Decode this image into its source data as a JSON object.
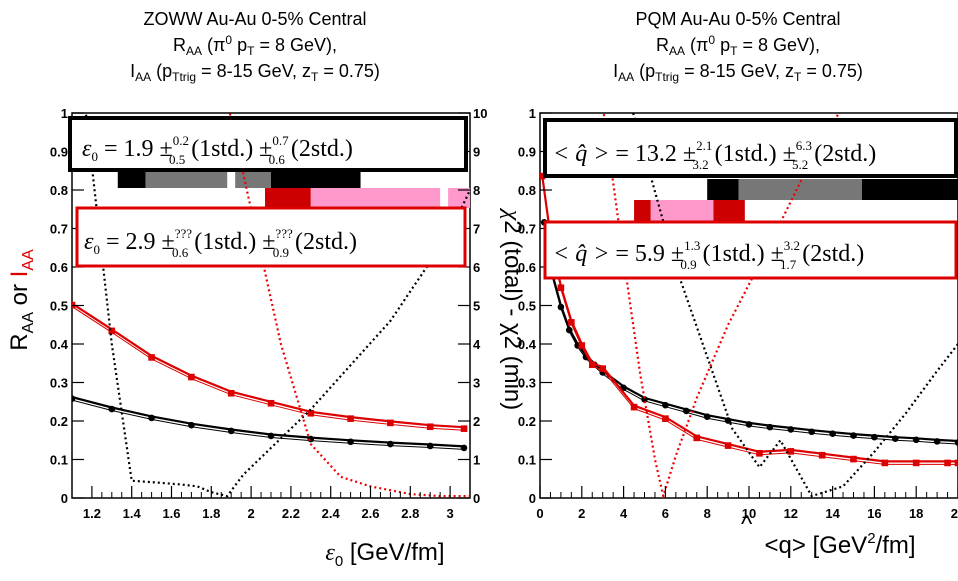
{
  "chart_data": [
    {
      "type": "line",
      "title_lines": [
        "ZOWW Au-Au 0-5% Central",
        "R",
        "AA",
        " (π",
        "0",
        " p",
        "T",
        " = 8 GeV),",
        "I",
        "AA",
        " (p",
        "Ttrig",
        " = 8-15 GeV, z",
        "T",
        " = 0.75)"
      ],
      "xlabel": "ε",
      "xlabel_sub": "0",
      "xlabel_rest": " [GeV/fm]",
      "ylabel_left": "R",
      "ylabel_left_sub": "AA",
      "ylabel_left_or": " or ",
      "ylabel_left_red": "I",
      "ylabel_left_red_sub": "AA",
      "xlim": [
        1.1,
        3.1
      ],
      "ylim": [
        0,
        1
      ],
      "y2lim": [
        0,
        10
      ],
      "x_ticks": [
        "1.2",
        "1.4",
        "1.6",
        "1.8",
        "2",
        "2.2",
        "2.4",
        "2.6",
        "2.8",
        "3"
      ],
      "y_ticks": [
        "0",
        "0.1",
        "0.2",
        "0.3",
        "0.4",
        "0.5",
        "0.6",
        "0.7",
        "0.8",
        "0.9",
        "1"
      ],
      "y2_ticks": [
        "0",
        "1",
        "2",
        "3",
        "4",
        "5",
        "6",
        "7",
        "8",
        "9",
        "10"
      ],
      "series": [
        {
          "name": "R_AA",
          "color": "#000000",
          "style": "solid-markers",
          "x": [
            1.1,
            1.3,
            1.5,
            1.7,
            1.9,
            2.1,
            2.3,
            2.5,
            2.7,
            2.9,
            3.07
          ],
          "y": [
            0.262,
            0.235,
            0.212,
            0.193,
            0.178,
            0.165,
            0.157,
            0.15,
            0.144,
            0.139,
            0.134
          ]
        },
        {
          "name": "I_AA",
          "color": "#dd0000",
          "style": "solid-markers",
          "x": [
            1.1,
            1.3,
            1.5,
            1.7,
            1.9,
            2.1,
            2.3,
            2.5,
            2.7,
            2.9,
            3.07
          ],
          "y": [
            0.505,
            0.438,
            0.369,
            0.318,
            0.276,
            0.25,
            0.224,
            0.21,
            0.199,
            0.189,
            0.184
          ]
        },
        {
          "name": "chi2 R_AA",
          "axis": "right",
          "color": "#000000",
          "style": "dotted",
          "x": [
            1.1,
            1.17,
            1.3,
            1.4,
            1.53,
            1.65,
            1.73,
            1.8,
            1.88,
            1.96,
            2.3,
            2.7,
            3.0,
            3.1
          ],
          "y": [
            12.0,
            10.0,
            4.0,
            0.45,
            0.4,
            0.35,
            0.3,
            0.15,
            0.05,
            0.6,
            2.3,
            4.6,
            6.9,
            8.0
          ]
        },
        {
          "name": "chi2 I_AA",
          "axis": "right",
          "color": "#ee0000",
          "style": "dotted",
          "x": [
            1.85,
            2.0,
            2.15,
            2.3,
            2.45,
            2.6,
            2.8,
            2.95,
            3.1
          ],
          "y": [
            11.0,
            7.5,
            4.0,
            1.4,
            0.55,
            0.3,
            0.1,
            0.05,
            0.05
          ]
        }
      ],
      "annotation_black": {
        "lhs": "ε",
        "lhs_sub": "0",
        "value": " = 1.9 ±",
        "sup1": "0.2",
        "sub1": "0.5",
        "mid": " (1std.) ±",
        "sup2": "0.7",
        "sub2": "0.6",
        "end": " (2std.)"
      },
      "annotation_red": {
        "lhs": "ε",
        "lhs_sub": "0",
        "value": " = 2.9 ±",
        "sup1": "???",
        "sub1": "0.6",
        "mid": " (1std.) ±",
        "sup2": "???",
        "sub2": "0.9",
        "end": " (2std.)"
      },
      "bands_black": [
        {
          "x0": 1.33,
          "x1": 1.47,
          "level": "1std"
        },
        {
          "x0": 1.47,
          "x1": 1.88,
          "level": "2std"
        },
        {
          "x0": 1.92,
          "x1": 2.1,
          "level": "2std"
        },
        {
          "x0": 2.1,
          "x1": 2.55,
          "level": "1std"
        }
      ],
      "bands_red": [
        {
          "x0": 2.07,
          "x1": 2.3,
          "level": "1std"
        },
        {
          "x0": 2.3,
          "x1": 2.95,
          "level": "2std"
        },
        {
          "x0": 2.99,
          "x1": 3.1,
          "level": "2std"
        }
      ]
    },
    {
      "type": "line",
      "title_lines": [
        "PQM Au-Au 0-5% Central",
        "R",
        "AA",
        " (π",
        "0",
        " p",
        "T",
        " = 8 GeV),",
        "I",
        "AA",
        " (p",
        "Ttrig",
        " = 8-15 GeV, z",
        "T",
        " = 0.75)"
      ],
      "xlabel": "<q> [GeV",
      "xlabel_sup": "2",
      "xlabel_rest": "/fm]",
      "hat": "^",
      "ylabel_right_chi": "χ",
      "ylabel_right": "2 (total) - χ2 (min)",
      "xlim": [
        0,
        20
      ],
      "ylim": [
        0,
        1
      ],
      "x_ticks": [
        "0",
        "2",
        "4",
        "6",
        "8",
        "10",
        "12",
        "14",
        "16",
        "18",
        "20"
      ],
      "y_ticks": [
        "0",
        "0.1",
        "0.2",
        "0.3",
        "0.4",
        "0.5",
        "0.6",
        "0.7",
        "0.8",
        "0.9",
        "1"
      ],
      "series": [
        {
          "name": "R_AA",
          "color": "#000000",
          "style": "solid-markers",
          "x": [
            0.2,
            0.6,
            1.0,
            1.4,
            1.8,
            2.2,
            2.6,
            3.0,
            4.0,
            5.0,
            6.0,
            7.0,
            8.0,
            9.0,
            10.0,
            11.0,
            12.0,
            13.0,
            14.0,
            15.0,
            16.0,
            17.0,
            18.0,
            19.0,
            20.0
          ],
          "y": [
            0.72,
            0.58,
            0.5,
            0.44,
            0.4,
            0.37,
            0.35,
            0.33,
            0.29,
            0.26,
            0.245,
            0.23,
            0.215,
            0.205,
            0.195,
            0.188,
            0.182,
            0.176,
            0.171,
            0.166,
            0.162,
            0.158,
            0.155,
            0.151,
            0.148
          ]
        },
        {
          "name": "I_AA",
          "color": "#dd0000",
          "style": "solid-markers",
          "x": [
            0.1,
            0.5,
            1.0,
            1.5,
            2.0,
            2.5,
            3.0,
            4.5,
            6.0,
            7.5,
            9.0,
            10.5,
            12.0,
            13.5,
            15.0,
            16.5,
            18.0,
            19.5,
            20.0
          ],
          "y": [
            0.84,
            0.68,
            0.55,
            0.46,
            0.4,
            0.35,
            0.34,
            0.24,
            0.21,
            0.16,
            0.14,
            0.12,
            0.125,
            0.115,
            0.105,
            0.095,
            0.095,
            0.095,
            0.095
          ]
        },
        {
          "name": "chi2 R_AA",
          "axis": "right",
          "color": "#000000",
          "style": "dotted",
          "x": [
            4.2,
            6.5,
            9.2,
            10.5,
            11.5,
            13.0,
            14.5,
            16.0,
            17.5,
            19.0,
            20.0
          ],
          "y": [
            10.5,
            6.0,
            1.8,
            0.8,
            1.5,
            0.05,
            0.3,
            1.2,
            2.2,
            3.3,
            4.0
          ]
        },
        {
          "name": "chi2 I_AA",
          "axis": "right",
          "color": "#ee0000",
          "style": "dotted",
          "x": [
            2.8,
            3.8,
            4.8,
            5.5,
            5.9,
            6.5,
            7.5,
            9.0,
            11.0,
            13.0,
            14.3,
            15.0
          ],
          "y": [
            11.0,
            7.0,
            3.2,
            1.0,
            0.05,
            1.1,
            2.6,
            4.5,
            6.6,
            8.8,
            10.0,
            11.0
          ]
        }
      ],
      "annotation_black": {
        "lhs": "< q̂ >",
        "value": " = 13.2 ±",
        "sup1": "2.1",
        "sub1": "3.2",
        "mid": " (1std.) ±",
        "sup2": "6.3",
        "sub2": "5.2",
        "end": " (2std.)"
      },
      "annotation_red": {
        "lhs": "< q̂ >",
        "value": " = 5.9 ±",
        "sup1": "1.3",
        "sub1": "0.9",
        "mid": " (1std.) ±",
        "sup2": "3.2",
        "sub2": "1.7",
        "end": " (2std.)"
      },
      "bands_black": [
        {
          "x0": 8.0,
          "x1": 9.5,
          "level": "1std"
        },
        {
          "x0": 9.5,
          "x1": 15.4,
          "level": "2std"
        },
        {
          "x0": 15.4,
          "x1": 20.0,
          "level": "1std"
        }
      ],
      "bands_red": [
        {
          "x0": 4.5,
          "x1": 5.3,
          "level": "1std"
        },
        {
          "x0": 5.3,
          "x1": 8.3,
          "level": "2std"
        },
        {
          "x0": 8.3,
          "x1": 9.8,
          "level": "1std"
        }
      ]
    }
  ],
  "colors": {
    "black": "#000000",
    "grey": "#777777",
    "red": "#cc0000",
    "pink": "#ff99cc",
    "red_line": "#dd0000"
  }
}
